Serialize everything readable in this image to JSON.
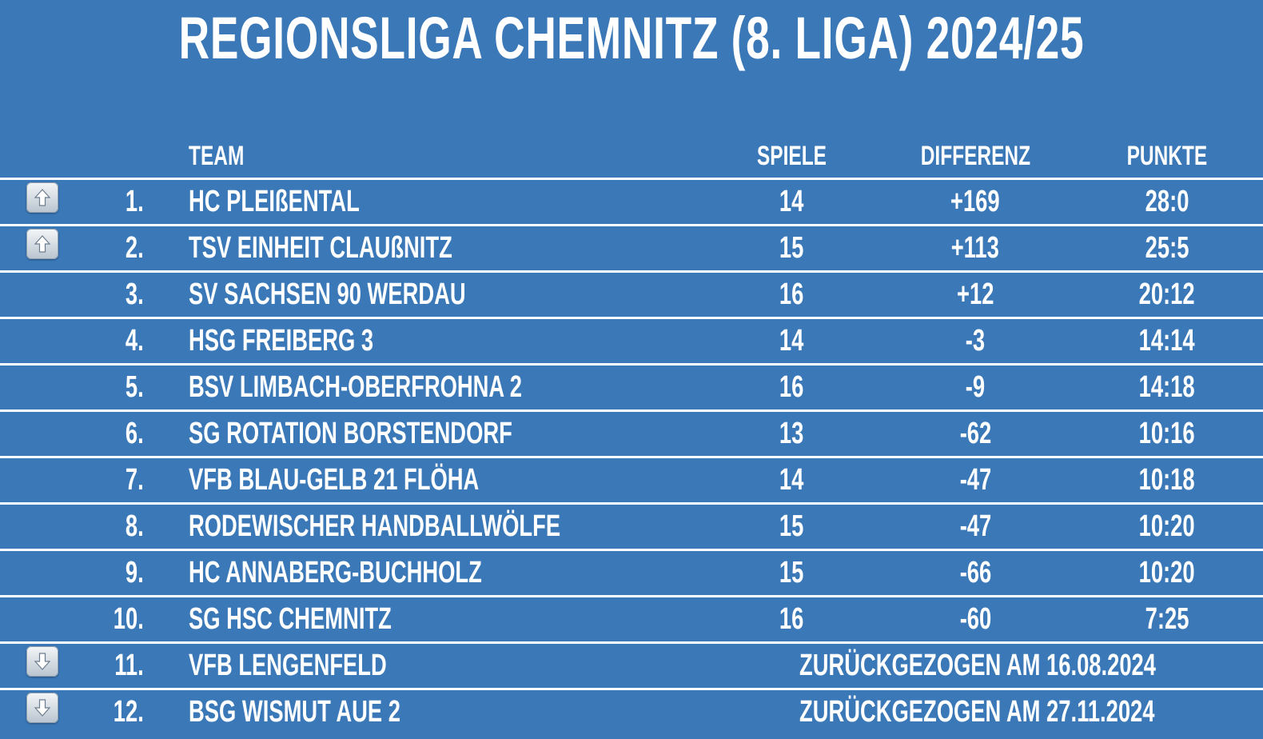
{
  "title": "REGIONSLIGA CHEMNITZ (8. LIGA) 2024/25",
  "columns": {
    "team": "TEAM",
    "games": "SPIELE",
    "difference": "DIFFERENZ",
    "points": "PUNKTE"
  },
  "colors": {
    "background": "#3a78b8",
    "text": "#ffffff",
    "divider": "#ffffff"
  },
  "rows": [
    {
      "arrow": "arrow-up-icon",
      "rank": "1.",
      "team": "HC PLEIßENTAL",
      "games": "14",
      "diff": "+169",
      "points": "28:0"
    },
    {
      "arrow": "arrow-up-icon",
      "rank": "2.",
      "team": "TSV EINHEIT CLAUßNITZ",
      "games": "15",
      "diff": "+113",
      "points": "25:5"
    },
    {
      "rank": "3.",
      "team": "SV SACHSEN 90 WERDAU",
      "games": "16",
      "diff": "+12",
      "points": "20:12"
    },
    {
      "rank": "4.",
      "team": "HSG FREIBERG 3",
      "games": "14",
      "diff": "-3",
      "points": "14:14"
    },
    {
      "rank": "5.",
      "team": "BSV LIMBACH-OBERFROHNA 2",
      "games": "16",
      "diff": "-9",
      "points": "14:18"
    },
    {
      "rank": "6.",
      "team": "SG ROTATION BORSTENDORF",
      "games": "13",
      "diff": "-62",
      "points": "10:16"
    },
    {
      "rank": "7.",
      "team": "VFB BLAU-GELB 21 FLÖHA",
      "games": "14",
      "diff": "-47",
      "points": "10:18"
    },
    {
      "rank": "8.",
      "team": "RODEWISCHER HANDBALLWÖLFE",
      "games": "15",
      "diff": "-47",
      "points": "10:20"
    },
    {
      "rank": "9.",
      "team": "HC ANNABERG-BUCHHOLZ",
      "games": "15",
      "diff": "-66",
      "points": "10:20"
    },
    {
      "rank": "10.",
      "team": "SG HSC CHEMNITZ",
      "games": "16",
      "diff": "-60",
      "points": "7:25"
    },
    {
      "arrow": "arrow-down-icon",
      "rank": "11.",
      "team": "VFB LENGENFELD",
      "note": "ZURÜCKGEZOGEN AM 16.08.2024"
    },
    {
      "arrow": "arrow-down-icon",
      "rank": "12.",
      "team": "BSG WISMUT AUE 2",
      "note": "ZURÜCKGEZOGEN AM 27.11.2024"
    }
  ]
}
